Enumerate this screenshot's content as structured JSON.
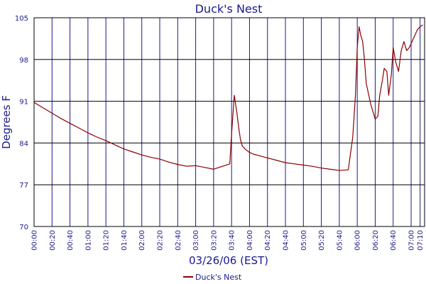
{
  "chart_data": {
    "type": "line",
    "title": "Duck's Nest",
    "xlabel": "03/26/06 (EST)",
    "ylabel": "Degrees F",
    "ylim": [
      70,
      105
    ],
    "y_ticks": [
      70,
      77,
      84,
      91,
      98,
      105
    ],
    "x_tick_labels": [
      "00:00",
      "00:20",
      "00:40",
      "01:00",
      "01:20",
      "01:40",
      "02:00",
      "02:20",
      "02:40",
      "03:00",
      "03:20",
      "03:40",
      "04:00",
      "04:20",
      "04:40",
      "05:00",
      "05:20",
      "05:40",
      "06:00",
      "06:20",
      "06:40",
      "07:00",
      "07:10"
    ],
    "xlim_minutes": [
      0,
      435
    ],
    "grid": true,
    "legend_position": "bottom-center",
    "series": [
      {
        "name": "Duck's Nest",
        "color": "#8b0000",
        "x": [
          0,
          10,
          20,
          30,
          40,
          50,
          60,
          70,
          80,
          90,
          100,
          110,
          120,
          130,
          140,
          150,
          160,
          170,
          180,
          190,
          200,
          210,
          218,
          220,
          223,
          226,
          228,
          230,
          232,
          235,
          240,
          245,
          250,
          260,
          270,
          280,
          290,
          300,
          310,
          320,
          330,
          340,
          350,
          355,
          358,
          360,
          362,
          364,
          366,
          368,
          370,
          375,
          380,
          383,
          385,
          388,
          390,
          393,
          395,
          398,
          400,
          403,
          406,
          409,
          412,
          415,
          418,
          421,
          424,
          427,
          430,
          433
        ],
        "y": [
          90.8,
          89.9,
          89.0,
          88.1,
          87.3,
          86.5,
          85.7,
          85.0,
          84.4,
          83.7,
          83.0,
          82.5,
          82.0,
          81.6,
          81.3,
          80.8,
          80.4,
          80.1,
          80.2,
          79.9,
          79.6,
          80.1,
          80.5,
          85.5,
          92.0,
          89.0,
          86.5,
          84.5,
          83.5,
          83.0,
          82.4,
          82.1,
          81.9,
          81.5,
          81.1,
          80.7,
          80.5,
          80.3,
          80.1,
          79.8,
          79.6,
          79.4,
          79.5,
          85.0,
          92.0,
          100.0,
          103.5,
          102.0,
          101.0,
          98.0,
          94.0,
          90.5,
          88.0,
          88.5,
          92.0,
          94.5,
          96.5,
          96.0,
          92.0,
          95.5,
          100.0,
          97.5,
          96.0,
          99.5,
          101.0,
          99.5,
          100.0,
          101.0,
          102.0,
          103.0,
          103.5,
          103.8
        ]
      }
    ]
  }
}
